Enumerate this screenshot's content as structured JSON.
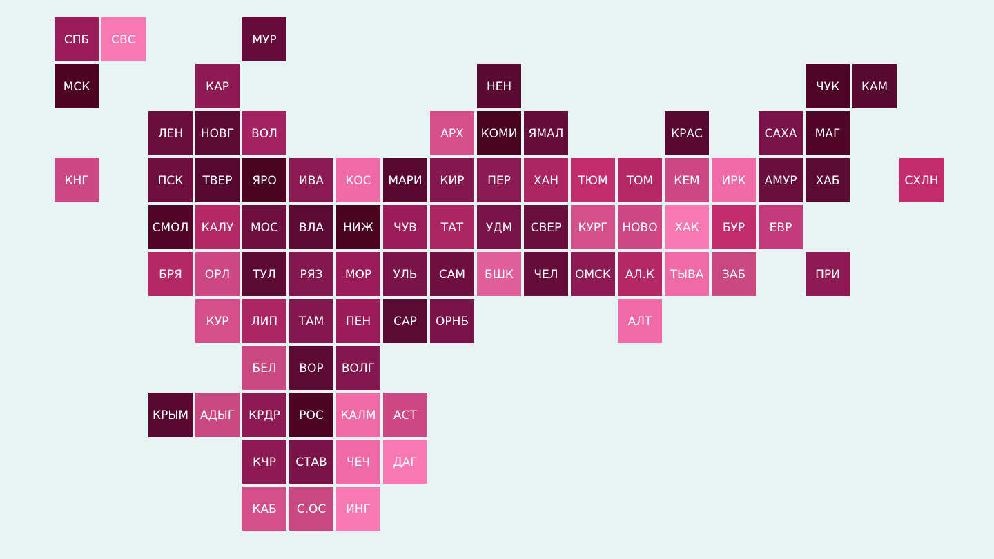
{
  "rows": [
    [
      {
        "label": "СПБ",
        "color": "#9b1c59"
      },
      {
        "label": "СВС",
        "color": "#f878b4"
      },
      null,
      null,
      {
        "label": "МУР",
        "color": "#650c3a"
      }
    ],
    [
      {
        "label": "МСК",
        "color": "#4d0324"
      },
      null,
      null,
      {
        "label": "КАР",
        "color": "#8e1a53"
      },
      null,
      null,
      null,
      null,
      null,
      {
        "label": "НЕН",
        "color": "#5a0930"
      },
      null,
      null,
      null,
      null,
      null,
      null,
      {
        "label": "ЧУК",
        "color": "#4d0426"
      },
      {
        "label": "КАМ",
        "color": "#580930"
      }
    ],
    [
      null,
      null,
      {
        "label": "ЛЕН",
        "color": "#6a0e3d"
      },
      {
        "label": "НОВГ",
        "color": "#5c0a33"
      },
      {
        "label": "ВОЛ",
        "color": "#a52262"
      },
      null,
      null,
      null,
      {
        "label": "АРХ",
        "color": "#d54f8a"
      },
      {
        "label": "КОМИ",
        "color": "#48031f"
      },
      {
        "label": "ЯМАЛ",
        "color": "#650c3a"
      },
      null,
      null,
      {
        "label": "КРАС",
        "color": "#58072e"
      },
      null,
      {
        "label": "САХА",
        "color": "#7a1347"
      },
      {
        "label": "МАГ",
        "color": "#4f0428"
      }
    ],
    [
      {
        "label": "КНГ",
        "color": "#cc4783"
      },
      null,
      {
        "label": "ПСК",
        "color": "#6e0f3f"
      },
      {
        "label": "ТВЕР",
        "color": "#560830"
      },
      {
        "label": "ЯРО",
        "color": "#48031f"
      },
      {
        "label": "ИВА",
        "color": "#8a1a51"
      },
      {
        "label": "КОС",
        "color": "#f06aa8"
      },
      {
        "label": "МАРИ",
        "color": "#58082f"
      },
      {
        "label": "КИР",
        "color": "#84184e"
      },
      {
        "label": "ПЕР",
        "color": "#8c1a52"
      },
      {
        "label": "ХАН",
        "color": "#ac2563"
      },
      {
        "label": "ТЮМ",
        "color": "#c22c6c"
      },
      {
        "label": "ТОМ",
        "color": "#b52866"
      },
      {
        "label": "КЕМ",
        "color": "#cc4783"
      },
      {
        "label": "ИРК",
        "color": "#f06aa8"
      },
      {
        "label": "АМУР",
        "color": "#6a0e3d"
      },
      {
        "label": "ХАБ",
        "color": "#5c0a33"
      },
      null,
      {
        "label": "СХЛН",
        "color": "#c22c6c"
      }
    ],
    [
      null,
      null,
      {
        "label": "СМОЛ",
        "color": "#4f0428"
      },
      {
        "label": "КАЛУ",
        "color": "#b52866"
      },
      {
        "label": "МОС",
        "color": "#6e0f3f"
      },
      {
        "label": "ВЛА",
        "color": "#5c0a33"
      },
      {
        "label": "НИЖ",
        "color": "#48031f"
      },
      {
        "label": "ЧУВ",
        "color": "#9b1c59"
      },
      {
        "label": "ТАТ",
        "color": "#ac2563"
      },
      {
        "label": "УДМ",
        "color": "#7a1347"
      },
      {
        "label": "СВЕР",
        "color": "#6a0e3d"
      },
      {
        "label": "КУРГ",
        "color": "#d54f8a"
      },
      {
        "label": "НОВО",
        "color": "#cc4783"
      },
      {
        "label": "ХАК",
        "color": "#f878b4"
      },
      {
        "label": "БУР",
        "color": "#c22c6c"
      },
      {
        "label": "ЕВР",
        "color": "#c43a7a"
      }
    ],
    [
      null,
      null,
      {
        "label": "БРЯ",
        "color": "#b52866"
      },
      {
        "label": "ОРЛ",
        "color": "#cc4783"
      },
      {
        "label": "ТУЛ",
        "color": "#5c0a33"
      },
      {
        "label": "РЯЗ",
        "color": "#84184e"
      },
      {
        "label": "МОР",
        "color": "#9b1c59"
      },
      {
        "label": "УЛЬ",
        "color": "#7a1347"
      },
      {
        "label": "САМ",
        "color": "#6e0f3f"
      },
      {
        "label": "БШК",
        "color": "#e05e9a"
      },
      {
        "label": "ЧЕЛ",
        "color": "#650c3a"
      },
      {
        "label": "ОМСК",
        "color": "#8e1a53"
      },
      {
        "label": "АЛ.К",
        "color": "#b52866"
      },
      {
        "label": "ТЫВА",
        "color": "#f06aa8"
      },
      {
        "label": "ЗАБ",
        "color": "#c94880"
      },
      null,
      {
        "label": "ПРИ",
        "color": "#8e1a53"
      }
    ],
    [
      null,
      null,
      null,
      {
        "label": "КУР",
        "color": "#d54f8a"
      },
      {
        "label": "ЛИП",
        "color": "#ac2563"
      },
      {
        "label": "ТАМ",
        "color": "#84184e"
      },
      {
        "label": "ПЕН",
        "color": "#9b1c59"
      },
      {
        "label": "САР",
        "color": "#5c0a33"
      },
      {
        "label": "ОРНБ",
        "color": "#7a1347"
      },
      null,
      null,
      null,
      {
        "label": "АЛТ",
        "color": "#f06aa8"
      }
    ],
    [
      null,
      null,
      null,
      null,
      {
        "label": "БЕЛ",
        "color": "#c94880"
      },
      {
        "label": "ВОР",
        "color": "#5c0a33"
      },
      {
        "label": "ВОЛГ",
        "color": "#84184e"
      }
    ],
    [
      null,
      null,
      {
        "label": "КРЫМ",
        "color": "#58072e"
      },
      {
        "label": "АДЫГ",
        "color": "#c94880"
      },
      {
        "label": "КРДР",
        "color": "#8e1a53"
      },
      {
        "label": "РОС",
        "color": "#4d0324"
      },
      {
        "label": "КАЛМ",
        "color": "#f06aa8"
      },
      {
        "label": "АСТ",
        "color": "#cc4783"
      }
    ],
    [
      null,
      null,
      null,
      null,
      {
        "label": "КЧР",
        "color": "#8e1a53"
      },
      {
        "label": "СТАВ",
        "color": "#7a1347"
      },
      {
        "label": "ЧЕЧ",
        "color": "#f06aa8"
      },
      {
        "label": "ДАГ",
        "color": "#f878b4"
      }
    ],
    [
      null,
      null,
      null,
      null,
      {
        "label": "КАБ",
        "color": "#d54f8a"
      },
      {
        "label": "С.ОС",
        "color": "#c94880"
      },
      {
        "label": "ИНГ",
        "color": "#f878b4"
      }
    ]
  ]
}
